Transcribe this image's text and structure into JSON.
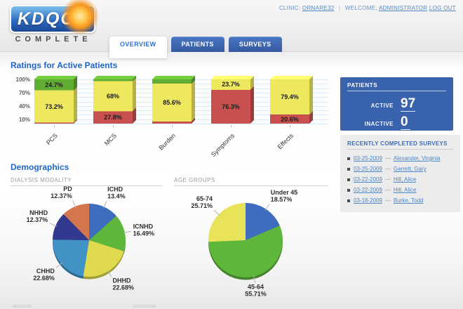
{
  "header": {
    "logo": {
      "title": "KDQOL",
      "subtitle": "COMPLETE"
    },
    "top": {
      "clinic_label": "CLINIC:",
      "clinic_value": "ORNARE32",
      "separator": "|",
      "welcome_label": "WELCOME,",
      "user_link": "ADMINISTRATOR",
      "logout_link": "LOG OUT"
    },
    "tabs": [
      {
        "label": "OVERVIEW",
        "active": true
      },
      {
        "label": "PATIENTS",
        "active": false
      },
      {
        "label": "SURVEYS",
        "active": false
      }
    ]
  },
  "main": {
    "ratings_title": "Ratings for Active Patients",
    "demographics_title": "Demographics",
    "dialysis_section_label": "DIALYSIS MODALITY",
    "age_section_label": "AGE GROUPS"
  },
  "sidebar": {
    "patients": {
      "title": "PATIENTS",
      "rows": [
        {
          "label": "ACTIVE",
          "value": "97"
        },
        {
          "label": "INACTIVE",
          "value": "0"
        }
      ]
    },
    "surveys": {
      "title": "RECENTLY COMPLETED SURVEYS",
      "separator": "—",
      "items": [
        {
          "date": "03-25-2009",
          "name": "Alexander, Virginia"
        },
        {
          "date": "03-25-2009",
          "name": "Garrett, Gary"
        },
        {
          "date": "03-22-2009",
          "name": "Hill, Alice"
        },
        {
          "date": "03-22-2009",
          "name": "Hill, Alice"
        },
        {
          "date": "03-18-2009",
          "name": "Burke, Todd"
        }
      ]
    }
  },
  "chart_data": [
    {
      "type": "bar",
      "stacked": true,
      "title": "Ratings for Active Patients",
      "ylim": [
        0,
        100
      ],
      "yticks": [
        "10%",
        "40%",
        "70%",
        "100%"
      ],
      "grid": true,
      "categories": [
        "PCS",
        "MCS",
        "Burden",
        "Symptoms",
        "Effects"
      ],
      "band_colors": {
        "red": "#c8504e",
        "yellow": "#eee85e",
        "green": "#61ac33"
      },
      "bars": [
        {
          "category": "PCS",
          "segments": [
            {
              "band": "red",
              "value": 2.1,
              "label": ""
            },
            {
              "band": "yellow",
              "value": 73.2,
              "label": "73.2%"
            },
            {
              "band": "green",
              "value": 24.7,
              "label": "24.7%"
            }
          ]
        },
        {
          "category": "MCS",
          "segments": [
            {
              "band": "red",
              "value": 27.8,
              "label": "27.8%"
            },
            {
              "band": "yellow",
              "value": 68,
              "label": "68%"
            },
            {
              "band": "green",
              "value": 4.2,
              "label": ""
            }
          ]
        },
        {
          "category": "Burden",
          "segments": [
            {
              "band": "red",
              "value": 4.8,
              "label": ""
            },
            {
              "band": "yellow",
              "value": 85.6,
              "label": "85.6%"
            },
            {
              "band": "green",
              "value": 9.6,
              "label": ""
            }
          ]
        },
        {
          "category": "Symptoms",
          "segments": [
            {
              "band": "red",
              "value": 76.3,
              "label": "76.3%"
            },
            {
              "band": "yellow",
              "value": 23.7,
              "label": "23.7%"
            }
          ]
        },
        {
          "category": "Effects",
          "segments": [
            {
              "band": "red",
              "value": 20.6,
              "label": "20.6%"
            },
            {
              "band": "yellow",
              "value": 79.4,
              "label": "79.4%"
            }
          ]
        }
      ]
    },
    {
      "type": "pie",
      "title": "DIALYSIS MODALITY",
      "segments": [
        {
          "label": "ICHD",
          "value": 13.4,
          "display": "13.4%",
          "color": "#3e6cbf"
        },
        {
          "label": "ICNHD",
          "value": 16.49,
          "display": "16.49%",
          "color": "#5fb63c"
        },
        {
          "label": "DHHD",
          "value": 22.68,
          "display": "22.68%",
          "color": "#e0da4f"
        },
        {
          "label": "CHHD",
          "value": 22.68,
          "display": "22.68%",
          "color": "#4193c6"
        },
        {
          "label": "NHHD",
          "value": 12.37,
          "display": "12.37%",
          "color": "#32388e"
        },
        {
          "label": "PD",
          "value": 12.37,
          "display": "12.37%",
          "color": "#d3764d"
        }
      ]
    },
    {
      "type": "pie",
      "title": "AGE GROUPS",
      "segments": [
        {
          "label": "Under 45",
          "value": 18.57,
          "display": "18.57%",
          "color": "#3e6cbf"
        },
        {
          "label": "45-64",
          "value": 55.71,
          "display": "55.71%",
          "color": "#5fb63c"
        },
        {
          "label": "65-74",
          "value": 25.71,
          "display": "25.71%",
          "color": "#e9e35a"
        }
      ]
    }
  ]
}
